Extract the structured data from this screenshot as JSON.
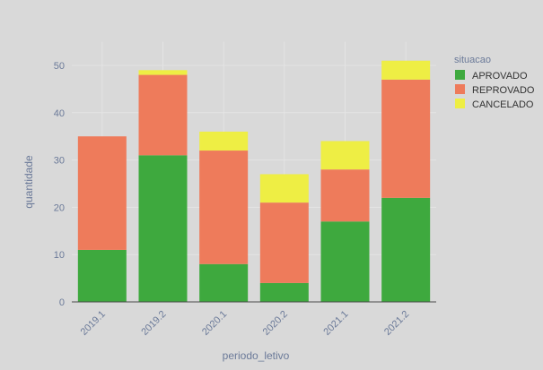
{
  "chart_data": {
    "type": "bar",
    "stacked": true,
    "categories": [
      "2019.1",
      "2019.2",
      "2020.1",
      "2020.2",
      "2021.1",
      "2021.2"
    ],
    "series": [
      {
        "name": "APROVADO",
        "values": [
          11,
          31,
          8,
          4,
          17,
          22
        ],
        "color": "#3ea93e"
      },
      {
        "name": "REPROVADO",
        "values": [
          24,
          17,
          24,
          17,
          11,
          25
        ],
        "color": "#ee7b5b"
      },
      {
        "name": "CANCELADO",
        "values": [
          0,
          1,
          4,
          6,
          6,
          4
        ],
        "color": "#eeee44"
      }
    ],
    "title": "",
    "xlabel": "periodo_letivo",
    "ylabel": "quantidade",
    "ylim": [
      0,
      55
    ],
    "yticks": [
      0,
      10,
      20,
      30,
      40,
      50
    ],
    "legend_title": "situacao",
    "legend_position": "top-right",
    "grid": true,
    "background_color": "#d9d9d9"
  }
}
